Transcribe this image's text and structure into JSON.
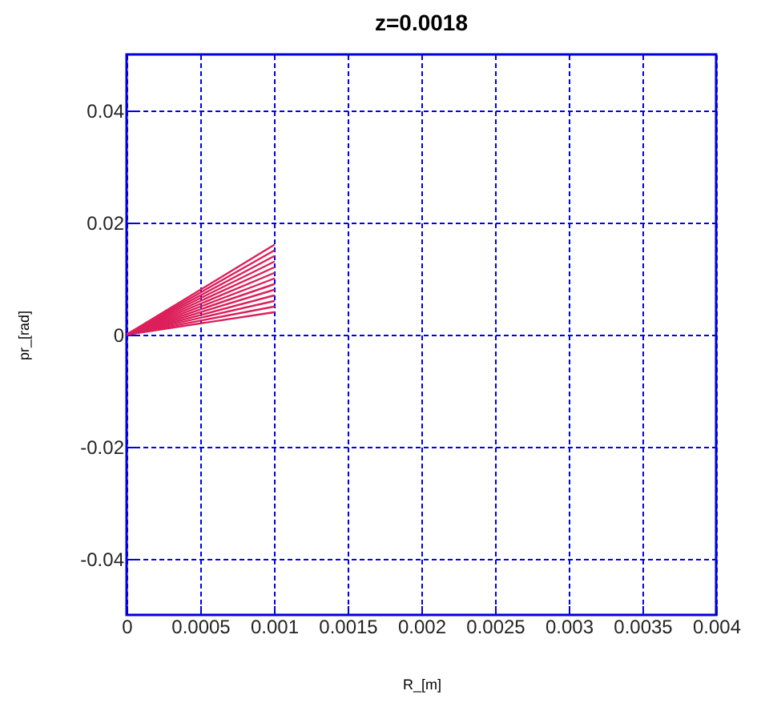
{
  "chart_data": {
    "type": "line",
    "title": "z=0.0018",
    "xlabel": "R_[m]",
    "ylabel": "pr_[rad]",
    "x": [
      0,
      0.001
    ],
    "xlim": [
      0,
      0.004
    ],
    "xticks": [
      0,
      0.0005,
      0.001,
      0.0015,
      0.002,
      0.0025,
      0.003,
      0.0035,
      0.004
    ],
    "ylim": [
      -0.05,
      0.05
    ],
    "yticks": [
      -0.04,
      -0.02,
      0,
      0.02,
      0.04
    ],
    "grid": true,
    "legend": false,
    "line_style": "solid",
    "series": [
      {
        "color": "#dc1f5a",
        "values": [
          0,
          0.004
        ]
      },
      {
        "color": "#dc1f5a",
        "values": [
          0,
          0.005
        ]
      },
      {
        "color": "#dc1f5a",
        "values": [
          0,
          0.006
        ]
      },
      {
        "color": "#dc1f5a",
        "values": [
          0,
          0.007
        ]
      },
      {
        "color": "#dc1f5a",
        "values": [
          0,
          0.008
        ]
      },
      {
        "color": "#dc1f5a",
        "values": [
          0,
          0.009
        ]
      },
      {
        "color": "#dc1f5a",
        "values": [
          0,
          0.01
        ]
      },
      {
        "color": "#dc1f5a",
        "values": [
          0,
          0.011
        ]
      },
      {
        "color": "#dc1f5a",
        "values": [
          0,
          0.012
        ]
      },
      {
        "color": "#dc1f5a",
        "values": [
          0,
          0.013
        ]
      },
      {
        "color": "#dc1f5a",
        "values": [
          0,
          0.014
        ]
      },
      {
        "color": "#dc1f5a",
        "values": [
          0,
          0.015
        ]
      },
      {
        "color": "#dc1f5a",
        "values": [
          0,
          0.016
        ]
      }
    ]
  }
}
